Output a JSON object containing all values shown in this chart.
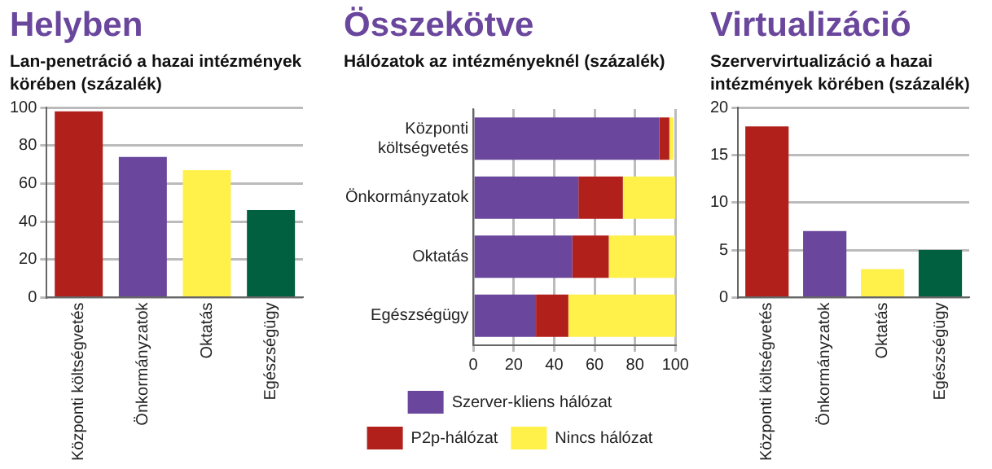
{
  "chart_data": [
    {
      "type": "bar",
      "title": "Helyben",
      "subtitle": "Lan-penetráció a hazai intézmények körében (százalék)",
      "categories": [
        "Központi költségvetés",
        "Önkormányzatok",
        "Oktatás",
        "Egészségügy"
      ],
      "values": [
        98,
        74,
        67,
        46
      ],
      "colors": [
        "#b2201c",
        "#6a479c",
        "#fff04a",
        "#006040"
      ],
      "ylim": [
        0,
        100
      ],
      "yticks": [
        0,
        20,
        40,
        60,
        80,
        100
      ],
      "grid": "y",
      "legend": false
    },
    {
      "type": "bar",
      "title": "Összekötve",
      "subtitle": "Hálózatok az intézményeknél (százalék)",
      "orientation": "horizontal",
      "stacked": true,
      "categories": [
        "Központi költségvetés",
        "Önkormányzatok",
        "Oktatás",
        "Egészségügy"
      ],
      "series": [
        {
          "name": "Szerver-kliens hálózat",
          "color": "#6a479c",
          "values": [
            92,
            52,
            49,
            31
          ]
        },
        {
          "name": "P2p-hálózat",
          "color": "#b2201c",
          "values": [
            5,
            22,
            18,
            16
          ]
        },
        {
          "name": "Nincs hálózat",
          "color": "#fff04a",
          "values": [
            2,
            26,
            33,
            53
          ]
        }
      ],
      "xlim": [
        0,
        100
      ],
      "xticks": [
        0,
        20,
        40,
        60,
        80,
        100
      ],
      "grid": "x",
      "legend": "bottom"
    },
    {
      "type": "bar",
      "title": "Virtualizáció",
      "subtitle": "Szervervirtualizáció a hazai intézmények körében (százalék)",
      "categories": [
        "Központi költségvetés",
        "Önkormányzatok",
        "Oktatás",
        "Egészségügy"
      ],
      "values": [
        18,
        7,
        3,
        5
      ],
      "colors": [
        "#b2201c",
        "#6a479c",
        "#fff04a",
        "#006040"
      ],
      "ylim": [
        0,
        20
      ],
      "yticks": [
        0,
        5,
        10,
        15,
        20
      ],
      "grid": "y",
      "legend": false
    }
  ]
}
